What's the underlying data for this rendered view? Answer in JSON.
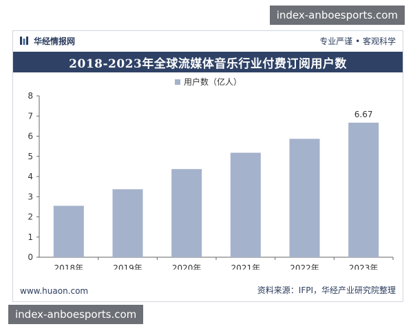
{
  "watermarks": {
    "top": "index-anboesports.com",
    "bottom": "index-anboesports.com"
  },
  "header": {
    "brand": "华经情报网",
    "slogan": "专业严谨 • 客观科学"
  },
  "footer": {
    "website": "www.huaon.com",
    "source": "资料来源：IFPI，华经产业研究院整理"
  },
  "colors": {
    "bar": "#a5b2cc",
    "title_band": "#2f4266",
    "brand_text": "#2b3c5d"
  },
  "chart_data": {
    "type": "bar",
    "title": "2018-2023年全球流媒体音乐行业付费订阅用户数",
    "legend": {
      "label": "用户数（亿人）",
      "placement": "top-center"
    },
    "categories": [
      "2018年",
      "2019年",
      "2020年",
      "2021年",
      "2022年",
      "2023年"
    ],
    "series": [
      {
        "name": "用户数（亿人）",
        "values": [
          2.55,
          3.37,
          4.37,
          5.18,
          5.87,
          6.67
        ]
      }
    ],
    "data_labels": [
      null,
      null,
      null,
      null,
      null,
      "6.67"
    ],
    "ylim": [
      0,
      8
    ],
    "yticks": [
      0,
      1,
      2,
      3,
      4,
      5,
      6,
      7,
      8
    ],
    "xlabel": "",
    "ylabel": "",
    "grid": false
  }
}
